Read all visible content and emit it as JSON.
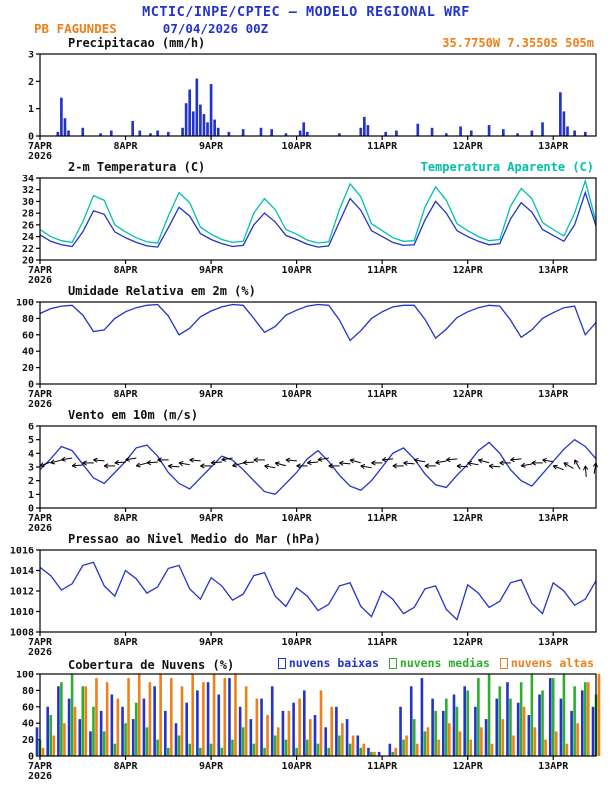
{
  "header": {
    "title": "MCTIC/INPE/CPTEC — MODELO REGIONAL WRF",
    "station": "PB FAGUNDES",
    "run": "07/04/2026 00Z"
  },
  "colors": {
    "blue": "#2233cc",
    "cyan": "#00c2aa",
    "orange": "#ef7f1a",
    "green": "#2eae2e",
    "black": "#111111"
  },
  "x_axis": {
    "total_hours": 156,
    "tick_hours": [
      0,
      24,
      48,
      72,
      96,
      120,
      144
    ],
    "tick_labels": [
      "7APR",
      "8APR",
      "9APR",
      "10APR",
      "11APR",
      "12APR",
      "13APR"
    ],
    "year_label": "2026"
  },
  "chart_data": [
    {
      "id": "precipitation",
      "type": "bar",
      "title": "Precipitacao (mm/h)",
      "annotation": "35.7750W 7.3550S 505m",
      "ylim": [
        0,
        3
      ],
      "yticks": [
        0,
        1,
        2,
        3
      ],
      "step_hours": 1,
      "series": [
        {
          "name": "precipitacao",
          "color_key": "blue",
          "values": [
            0,
            0,
            0,
            0,
            0,
            0.15,
            1.4,
            0.65,
            0.2,
            0,
            0,
            0,
            0.3,
            0,
            0,
            0,
            0,
            0.1,
            0,
            0,
            0.2,
            0,
            0,
            0,
            0,
            0,
            0.55,
            0,
            0.2,
            0,
            0,
            0.1,
            0,
            0.2,
            0,
            0,
            0.15,
            0,
            0,
            0,
            0.3,
            1.2,
            1.7,
            0.9,
            2.1,
            1.15,
            0.8,
            0.5,
            1.9,
            0.6,
            0.3,
            0,
            0,
            0.15,
            0,
            0,
            0,
            0.25,
            0,
            0,
            0,
            0,
            0.3,
            0,
            0,
            0.25,
            0,
            0,
            0,
            0.1,
            0,
            0,
            0,
            0.2,
            0.5,
            0.15,
            0,
            0,
            0,
            0,
            0,
            0,
            0,
            0,
            0.1,
            0,
            0,
            0,
            0,
            0,
            0.3,
            0.7,
            0.4,
            0,
            0,
            0,
            0,
            0.15,
            0,
            0,
            0.2,
            0,
            0,
            0,
            0,
            0,
            0.45,
            0,
            0,
            0,
            0.3,
            0,
            0,
            0,
            0.1,
            0,
            0,
            0,
            0.35,
            0,
            0,
            0.2,
            0,
            0,
            0,
            0,
            0.4,
            0,
            0,
            0,
            0.25,
            0,
            0,
            0,
            0.1,
            0,
            0,
            0,
            0.2,
            0,
            0,
            0.5,
            0,
            0,
            0,
            0,
            1.6,
            0.9,
            0.35,
            0,
            0.2,
            0,
            0,
            0.15,
            0,
            0,
            0
          ]
        }
      ]
    },
    {
      "id": "temperature",
      "type": "line",
      "title": "2-m Temperatura (C)",
      "legend": "Temperatura Aparente (C)",
      "ylim": [
        20,
        34
      ],
      "yticks": [
        20,
        22,
        24,
        26,
        28,
        30,
        32,
        34
      ],
      "step_hours": 3,
      "series": [
        {
          "name": "2-m Temperatura (C)",
          "color_key": "blue",
          "values": [
            24.3,
            23.2,
            22.6,
            22.3,
            24.8,
            28.4,
            27.8,
            24.8,
            23.8,
            23.0,
            22.4,
            22.2,
            25.5,
            29.0,
            27.5,
            24.5,
            23.5,
            22.8,
            22.3,
            22.5,
            26.0,
            28.0,
            26.5,
            24.2,
            23.5,
            22.7,
            22.2,
            22.4,
            26.5,
            30.5,
            28.5,
            25.0,
            24.0,
            23.0,
            22.5,
            22.6,
            26.8,
            30.0,
            28.0,
            25.0,
            24.0,
            23.2,
            22.6,
            22.8,
            27.0,
            29.8,
            28.2,
            25.2,
            24.2,
            23.2,
            26.0,
            31.5,
            25.8
          ]
        },
        {
          "name": "Temperatura Aparente (C)",
          "color_key": "cyan",
          "values": [
            25.2,
            24.0,
            23.3,
            23.0,
            26.5,
            31.0,
            30.2,
            26.0,
            24.8,
            23.8,
            23.1,
            22.9,
            27.5,
            31.5,
            29.8,
            25.6,
            24.4,
            23.5,
            23.0,
            23.2,
            28.0,
            30.5,
            28.6,
            25.2,
            24.4,
            23.4,
            22.9,
            23.1,
            28.6,
            33.0,
            30.8,
            26.2,
            25.0,
            23.8,
            23.2,
            23.3,
            29.0,
            32.5,
            30.2,
            26.2,
            25.0,
            24.0,
            23.3,
            23.5,
            29.2,
            32.2,
            30.5,
            26.4,
            25.2,
            24.1,
            28.0,
            33.5,
            26.5
          ]
        }
      ]
    },
    {
      "id": "humidity",
      "type": "line",
      "title": "Umidade Relativa em 2m (%)",
      "ylim": [
        0,
        100
      ],
      "yticks": [
        0,
        20,
        40,
        60,
        80,
        100
      ],
      "step_hours": 3,
      "series": [
        {
          "name": "umidade relativa",
          "color_key": "blue",
          "values": [
            86,
            92,
            95,
            96,
            84,
            64,
            66,
            80,
            88,
            93,
            96,
            97,
            83,
            60,
            68,
            82,
            89,
            94,
            97,
            96,
            80,
            63,
            70,
            84,
            90,
            95,
            97,
            96,
            78,
            53,
            65,
            80,
            88,
            94,
            96,
            96,
            79,
            56,
            67,
            81,
            88,
            93,
            96,
            95,
            78,
            57,
            66,
            80,
            87,
            93,
            95,
            60,
            75
          ]
        }
      ]
    },
    {
      "id": "wind",
      "type": "line",
      "title": "Vento em 10m (m/s)",
      "ylim": [
        0,
        6
      ],
      "yticks": [
        0,
        1,
        2,
        3,
        4,
        5,
        6
      ],
      "step_hours": 3,
      "series": [
        {
          "name": "vento 10m",
          "color_key": "blue",
          "values": [
            2.8,
            3.6,
            4.5,
            4.2,
            3.2,
            2.2,
            1.8,
            2.6,
            3.4,
            4.4,
            4.6,
            3.8,
            2.6,
            1.8,
            1.4,
            2.2,
            3.0,
            3.8,
            3.5,
            2.8,
            2.0,
            1.2,
            1.0,
            1.8,
            2.6,
            3.6,
            4.2,
            3.4,
            2.4,
            1.6,
            1.3,
            2.0,
            3.0,
            4.0,
            4.4,
            3.6,
            2.5,
            1.7,
            1.5,
            2.4,
            3.2,
            4.2,
            4.8,
            4.0,
            2.8,
            2.0,
            1.6,
            2.5,
            3.4,
            4.3,
            5.0,
            4.5,
            3.6
          ]
        }
      ],
      "barbs": {
        "y": 3.3,
        "directions_deg": [
          250,
          255,
          260,
          265,
          270,
          275,
          270,
          265,
          260,
          255,
          265,
          270,
          275,
          280,
          275,
          270,
          265,
          260,
          255,
          265,
          270,
          280,
          285,
          275,
          270,
          265,
          260,
          270,
          275,
          285,
          280,
          270,
          265,
          270,
          275,
          280,
          270,
          260,
          265,
          275,
          280,
          285,
          275,
          270,
          265,
          260,
          270,
          280,
          290,
          300,
          330,
          355,
          10
        ]
      }
    },
    {
      "id": "pressure",
      "type": "line",
      "title": "Pressao ao Nivel Medio do Mar (hPa)",
      "ylim": [
        1008,
        1016
      ],
      "yticks": [
        1008,
        1010,
        1012,
        1014,
        1016
      ],
      "step_hours": 3,
      "series": [
        {
          "name": "pressao nivel medio do mar",
          "color_key": "blue",
          "values": [
            1014.3,
            1013.5,
            1012.1,
            1012.7,
            1014.5,
            1014.8,
            1012.5,
            1011.5,
            1014.0,
            1013.2,
            1011.8,
            1012.4,
            1014.2,
            1014.5,
            1012.2,
            1011.2,
            1013.3,
            1012.5,
            1011.1,
            1011.7,
            1013.5,
            1013.8,
            1011.5,
            1010.5,
            1012.3,
            1011.5,
            1010.1,
            1010.7,
            1012.5,
            1012.8,
            1010.5,
            1009.5,
            1012.0,
            1011.2,
            1009.8,
            1010.4,
            1012.2,
            1012.5,
            1010.2,
            1009.2,
            1012.6,
            1011.8,
            1010.4,
            1011.0,
            1012.8,
            1013.1,
            1010.8,
            1009.8,
            1012.8,
            1012.0,
            1010.6,
            1011.2,
            1013.0
          ]
        }
      ]
    },
    {
      "id": "clouds",
      "type": "bar",
      "title": "Cobertura de Nuvens (%)",
      "ylim": [
        0,
        100
      ],
      "yticks": [
        0,
        20,
        40,
        60,
        80,
        100
      ],
      "step_hours": 3,
      "legend_items": [
        {
          "label": "nuvens baixas",
          "color_key": "blue"
        },
        {
          "label": "nuvens medias",
          "color_key": "green"
        },
        {
          "label": "nuvens altas",
          "color_key": "orange"
        }
      ],
      "series": [
        {
          "name": "nuvens baixas",
          "color_key": "blue",
          "values": [
            35,
            60,
            85,
            70,
            45,
            30,
            55,
            75,
            60,
            45,
            70,
            85,
            55,
            40,
            65,
            80,
            90,
            75,
            95,
            60,
            45,
            70,
            85,
            55,
            65,
            80,
            50,
            35,
            60,
            45,
            25,
            10,
            5,
            15,
            60,
            85,
            95,
            70,
            55,
            75,
            85,
            60,
            45,
            70,
            90,
            65,
            50,
            75,
            95,
            70,
            55,
            80,
            60
          ]
        },
        {
          "name": "nuvens medias",
          "color_key": "green",
          "values": [
            20,
            50,
            90,
            100,
            85,
            60,
            30,
            15,
            40,
            65,
            35,
            20,
            10,
            25,
            15,
            10,
            15,
            10,
            20,
            35,
            15,
            10,
            25,
            20,
            10,
            20,
            15,
            10,
            25,
            15,
            10,
            5,
            0,
            5,
            20,
            45,
            30,
            55,
            70,
            60,
            80,
            95,
            100,
            85,
            70,
            90,
            100,
            80,
            95,
            100,
            85,
            90,
            75
          ]
        },
        {
          "name": "nuvens altas",
          "color_key": "orange",
          "values": [
            10,
            25,
            40,
            60,
            85,
            95,
            90,
            70,
            95,
            100,
            90,
            100,
            95,
            85,
            100,
            90,
            100,
            95,
            100,
            85,
            70,
            50,
            35,
            55,
            70,
            45,
            80,
            60,
            40,
            25,
            15,
            5,
            0,
            10,
            25,
            15,
            35,
            20,
            40,
            30,
            20,
            35,
            15,
            45,
            25,
            60,
            35,
            20,
            30,
            15,
            40,
            90,
            100
          ]
        }
      ]
    }
  ]
}
